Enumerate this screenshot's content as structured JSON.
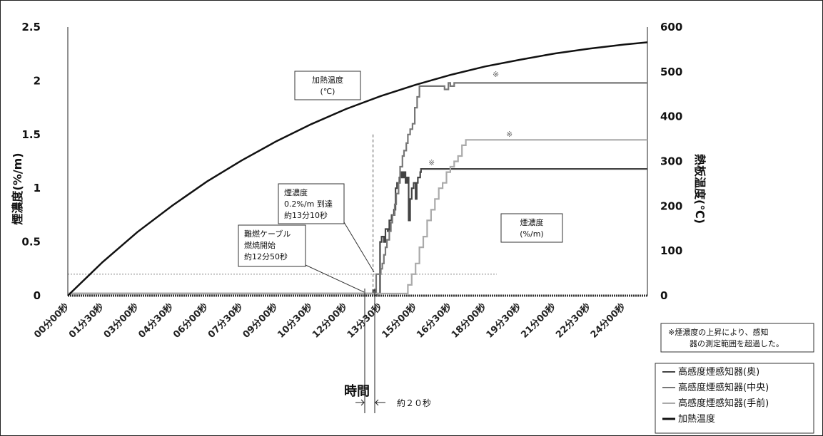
{
  "chart_data": {
    "type": "line",
    "xlabel": "時間",
    "ylabel_left": "煙濃度(%/m)",
    "ylabel_right": "熱板温度(℃)",
    "ylim_left": [
      0,
      2.5
    ],
    "ylim_right": [
      0,
      600
    ],
    "yticks_left": [
      "0",
      "0.5",
      "1",
      "1.5",
      "2",
      "2.5"
    ],
    "yticks_right": [
      "0",
      "100",
      "200",
      "300",
      "400",
      "500",
      "600"
    ],
    "xlim_seconds": [
      0,
      1500
    ],
    "xticks": [
      "00分00秒",
      "01分30秒",
      "03分00秒",
      "04分30秒",
      "06分00秒",
      "07分30秒",
      "09分00秒",
      "10分30秒",
      "12分00秒",
      "13分30秒",
      "15分00秒",
      "16分30秒",
      "18分00秒",
      "19分30秒",
      "21分00秒",
      "22分30秒",
      "24分00秒"
    ],
    "threshold_left": 0.2,
    "marker_time_seconds": 790,
    "series": [
      {
        "name": "高感度煙感知器(奥)",
        "axis": "left",
        "color": "#444444",
        "x": [
          0,
          780,
          790,
          795,
          800,
          808,
          812,
          818,
          822,
          828,
          832,
          838,
          844,
          848,
          852,
          858,
          862,
          866,
          870,
          874,
          878,
          882,
          886,
          890,
          895,
          900,
          903,
          906,
          908,
          910,
          912,
          914,
          917,
          920,
          960,
          990,
          1500
        ],
        "y": [
          0.02,
          0.02,
          0.05,
          0.0,
          0.02,
          0.5,
          0.55,
          0.5,
          0.62,
          0.6,
          0.7,
          0.75,
          0.8,
          1.0,
          1.05,
          1.1,
          1.15,
          1.1,
          1.15,
          1.05,
          1.1,
          0.7,
          0.9,
          1.0,
          1.05,
          0.9,
          1.05,
          1.1,
          1.1,
          1.1,
          1.15,
          1.18,
          1.18,
          1.18,
          1.18,
          1.18,
          1.18
        ]
      },
      {
        "name": "高感度煙感知器(中央)",
        "axis": "left",
        "color": "#777777",
        "x": [
          0,
          792,
          798,
          804,
          810,
          814,
          818,
          822,
          826,
          832,
          836,
          840,
          846,
          850,
          856,
          860,
          866,
          870,
          876,
          880,
          886,
          892,
          898,
          904,
          910,
          918,
          924,
          932,
          960,
          975,
          985,
          990,
          1000,
          1010,
          1500
        ],
        "y": [
          0.02,
          0.02,
          0.2,
          0.2,
          0.25,
          0.3,
          0.38,
          0.45,
          0.52,
          0.6,
          0.68,
          0.75,
          0.85,
          0.95,
          1.05,
          1.2,
          1.3,
          1.35,
          1.42,
          1.5,
          1.55,
          1.6,
          1.75,
          1.85,
          1.95,
          1.95,
          1.95,
          1.95,
          1.95,
          1.92,
          1.98,
          1.95,
          1.98,
          1.98,
          1.98
        ]
      },
      {
        "name": "高感度煙感知器(手前)",
        "axis": "left",
        "color": "#aaaaaa",
        "x": [
          0,
          870,
          880,
          890,
          900,
          910,
          920,
          930,
          940,
          950,
          960,
          970,
          980,
          990,
          1000,
          1010,
          1020,
          1030,
          1040,
          1050,
          1060,
          1070,
          1080,
          1090,
          1100,
          1110,
          1120,
          1500
        ],
        "y": [
          0.02,
          0.02,
          0.1,
          0.2,
          0.3,
          0.45,
          0.55,
          0.7,
          0.8,
          0.9,
          1.0,
          1.05,
          1.15,
          1.2,
          1.25,
          1.3,
          1.4,
          1.45,
          1.45,
          1.45,
          1.45,
          1.45,
          1.45,
          1.45,
          1.45,
          1.45,
          1.45,
          1.45
        ]
      },
      {
        "name": "加熱温度",
        "axis": "right",
        "color": "#111111",
        "x": [
          0,
          90,
          180,
          270,
          360,
          450,
          540,
          630,
          720,
          810,
          900,
          990,
          1080,
          1170,
          1260,
          1350,
          1440,
          1500
        ],
        "y": [
          0,
          75,
          142,
          201,
          255,
          302,
          345,
          383,
          417,
          446,
          471,
          493,
          512,
          527,
          541,
          552,
          561,
          566
        ]
      }
    ]
  },
  "annotations": {
    "heating_label": [
      "加熱温度",
      "(℃)"
    ],
    "smoke_label": [
      "煙濃度",
      "(%/m)"
    ],
    "ignition": [
      "難燃ケーブル",
      "燃焼開始",
      "約12分50秒"
    ],
    "reach": [
      "煙濃度",
      "0.2%/m 到達",
      "約13分10秒"
    ],
    "interval": "約２０秒",
    "star": "※",
    "note": [
      "※煙濃度の上昇により、感知",
      "器の測定範囲を超過した。"
    ]
  },
  "legend": [
    {
      "label": "高感度煙感知器(奥)",
      "color": "#444444"
    },
    {
      "label": "高感度煙感知器(中央)",
      "color": "#777777"
    },
    {
      "label": "高感度煙感知器(手前)",
      "color": "#aaaaaa"
    },
    {
      "label": "加熱温度",
      "color": "#111111"
    }
  ]
}
